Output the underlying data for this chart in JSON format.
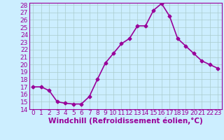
{
  "x": [
    0,
    1,
    2,
    3,
    4,
    5,
    6,
    7,
    8,
    9,
    10,
    11,
    12,
    13,
    14,
    15,
    16,
    17,
    18,
    19,
    20,
    21,
    22,
    23
  ],
  "y": [
    17.0,
    17.0,
    16.5,
    15.0,
    14.8,
    14.7,
    14.7,
    15.7,
    18.0,
    20.2,
    21.5,
    22.8,
    23.5,
    25.2,
    25.2,
    27.3,
    28.2,
    26.5,
    23.5,
    22.5,
    21.5,
    20.5,
    20.0,
    19.5
  ],
  "line_color": "#990099",
  "marker": "D",
  "marker_size": 2.5,
  "bg_color": "#cceeff",
  "grid_color": "#aacccc",
  "xlabel": "Windchill (Refroidissement éolien,°C)",
  "xlabel_color": "#990099",
  "tick_color": "#990099",
  "spine_color": "#990099",
  "ylim": [
    14,
    28
  ],
  "xlim": [
    -0.5,
    23.5
  ],
  "yticks": [
    14,
    15,
    16,
    17,
    18,
    19,
    20,
    21,
    22,
    23,
    24,
    25,
    26,
    27,
    28
  ],
  "xticks": [
    0,
    1,
    2,
    3,
    4,
    5,
    6,
    7,
    8,
    9,
    10,
    11,
    12,
    13,
    14,
    15,
    16,
    17,
    18,
    19,
    20,
    21,
    22,
    23
  ],
  "line_width": 1.2,
  "font_size": 6.5,
  "xlabel_fontsize": 7.5
}
